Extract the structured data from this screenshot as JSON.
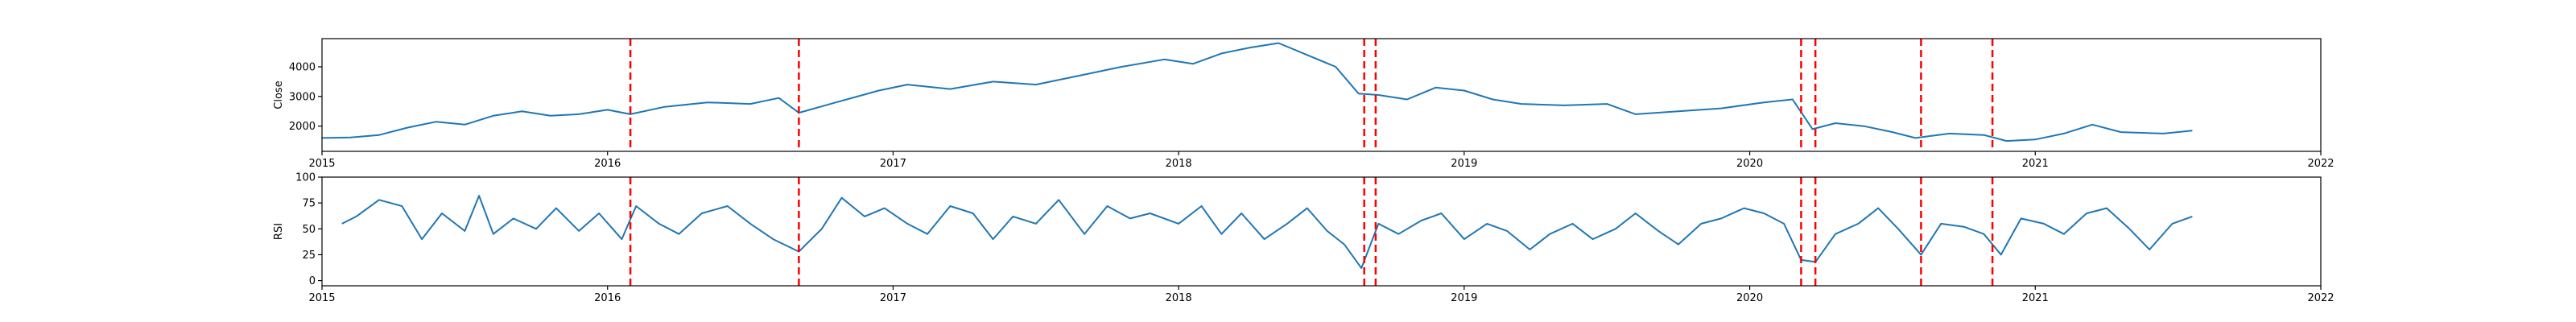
{
  "chart_data": [
    {
      "type": "line",
      "ylabel": "Close",
      "xlabel": "",
      "title": "",
      "xlim": [
        2015.0,
        2022.0
      ],
      "ylim": [
        1150,
        4950
      ],
      "x_ticks": [
        2015,
        2016,
        2017,
        2018,
        2019,
        2020,
        2021,
        2022
      ],
      "x_tick_labels": [
        "2015",
        "2016",
        "2017",
        "2018",
        "2019",
        "2020",
        "2021",
        "2022"
      ],
      "y_ticks": [
        2000,
        3000,
        4000
      ],
      "y_tick_labels": [
        "2000",
        "3000",
        "4000"
      ],
      "line_color": "#1f77b4",
      "series": [
        {
          "x": [
            2015.0,
            2015.1,
            2015.2,
            2015.3,
            2015.4,
            2015.5,
            2015.6,
            2015.7,
            2015.8,
            2015.9,
            2016.0,
            2016.08,
            2016.2,
            2016.35,
            2016.5,
            2016.6,
            2016.67,
            2016.8,
            2016.95,
            2017.05,
            2017.2,
            2017.35,
            2017.5,
            2017.65,
            2017.8,
            2017.95,
            2018.05,
            2018.15,
            2018.25,
            2018.35,
            2018.45,
            2018.55,
            2018.63,
            2018.7,
            2018.8,
            2018.9,
            2019.0,
            2019.1,
            2019.2,
            2019.35,
            2019.5,
            2019.6,
            2019.75,
            2019.9,
            2020.05,
            2020.15,
            2020.22,
            2020.3,
            2020.4,
            2020.5,
            2020.58,
            2020.7,
            2020.82,
            2020.9,
            2021.0,
            2021.1,
            2021.2,
            2021.3,
            2021.45,
            2021.55
          ],
          "y": [
            1600,
            1620,
            1700,
            1950,
            2150,
            2050,
            2350,
            2500,
            2350,
            2400,
            2550,
            2400,
            2650,
            2800,
            2750,
            2950,
            2450,
            2800,
            3200,
            3400,
            3250,
            3500,
            3400,
            3700,
            4000,
            4250,
            4100,
            4450,
            4650,
            4800,
            4400,
            4000,
            3100,
            3050,
            2900,
            3300,
            3200,
            2900,
            2750,
            2700,
            2750,
            2400,
            2500,
            2600,
            2800,
            2900,
            1900,
            2100,
            2000,
            1800,
            1600,
            1750,
            1700,
            1500,
            1550,
            1750,
            2050,
            1800,
            1750,
            1850
          ]
        }
      ],
      "vlines": [
        2016.08,
        2016.67,
        2018.65,
        2018.69,
        2020.18,
        2020.23,
        2020.6,
        2020.85
      ],
      "vline_color": "#ff0000"
    },
    {
      "type": "line",
      "ylabel": "RSI",
      "xlabel": "",
      "title": "",
      "xlim": [
        2015.0,
        2022.0
      ],
      "ylim": [
        -5,
        100
      ],
      "x_ticks": [
        2015,
        2016,
        2017,
        2018,
        2019,
        2020,
        2021,
        2022
      ],
      "x_tick_labels": [
        "2015",
        "2016",
        "2017",
        "2018",
        "2019",
        "2020",
        "2021",
        "2022"
      ],
      "y_ticks": [
        0,
        25,
        50,
        75,
        100
      ],
      "y_tick_labels": [
        "0",
        "25",
        "50",
        "75",
        "100"
      ],
      "line_color": "#1f77b4",
      "series": [
        {
          "x": [
            2015.07,
            2015.12,
            2015.2,
            2015.28,
            2015.35,
            2015.42,
            2015.5,
            2015.55,
            2015.6,
            2015.67,
            2015.75,
            2015.82,
            2015.9,
            2015.97,
            2016.05,
            2016.1,
            2016.18,
            2016.25,
            2016.33,
            2016.42,
            2016.5,
            2016.58,
            2016.67,
            2016.75,
            2016.82,
            2016.9,
            2016.97,
            2017.05,
            2017.12,
            2017.2,
            2017.28,
            2017.35,
            2017.42,
            2017.5,
            2017.58,
            2017.67,
            2017.75,
            2017.83,
            2017.9,
            2018.0,
            2018.08,
            2018.15,
            2018.22,
            2018.3,
            2018.38,
            2018.45,
            2018.52,
            2018.58,
            2018.64,
            2018.7,
            2018.77,
            2018.85,
            2018.92,
            2019.0,
            2019.08,
            2019.15,
            2019.23,
            2019.3,
            2019.38,
            2019.45,
            2019.53,
            2019.6,
            2019.68,
            2019.75,
            2019.83,
            2019.9,
            2019.98,
            2020.05,
            2020.12,
            2020.18,
            2020.23,
            2020.3,
            2020.38,
            2020.45,
            2020.52,
            2020.6,
            2020.67,
            2020.75,
            2020.82,
            2020.88,
            2020.95,
            2021.03,
            2021.1,
            2021.18,
            2021.25,
            2021.33,
            2021.4,
            2021.48,
            2021.55
          ],
          "y": [
            55,
            62,
            78,
            72,
            40,
            65,
            48,
            82,
            45,
            60,
            50,
            70,
            48,
            65,
            40,
            72,
            55,
            45,
            65,
            72,
            55,
            40,
            28,
            50,
            80,
            62,
            70,
            55,
            45,
            72,
            65,
            40,
            62,
            55,
            78,
            45,
            72,
            60,
            65,
            55,
            72,
            45,
            65,
            40,
            55,
            70,
            48,
            35,
            12,
            55,
            45,
            58,
            65,
            40,
            55,
            48,
            30,
            45,
            55,
            40,
            50,
            65,
            48,
            35,
            55,
            60,
            70,
            65,
            55,
            20,
            18,
            45,
            55,
            70,
            50,
            25,
            55,
            52,
            45,
            25,
            60,
            55,
            45,
            65,
            70,
            50,
            30,
            55,
            62
          ]
        }
      ],
      "vlines": [
        2016.08,
        2016.67,
        2018.65,
        2018.69,
        2020.18,
        2020.23,
        2020.6,
        2020.85
      ],
      "vline_color": "#ff0000"
    }
  ]
}
